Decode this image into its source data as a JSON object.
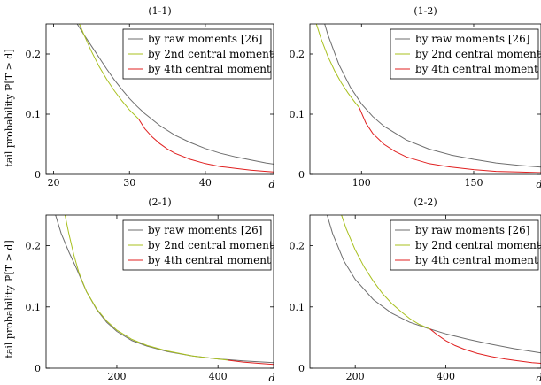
{
  "colors": {
    "raw": "#6e6e6e",
    "second": "#a8c01e",
    "fourth": "#e02020"
  },
  "ylabel": "tail probability ℙ[T ≥ d]",
  "chart_data": [
    {
      "type": "line",
      "title": "(1-1)",
      "xlabel": "d",
      "ylabel": "tail probability ℙ[T ≥ d]",
      "xlim": [
        19,
        49
      ],
      "ylim": [
        0,
        0.25
      ],
      "xticks": [
        20,
        30,
        40
      ],
      "yticks": [
        0,
        0.1,
        0.2
      ],
      "ytick_labels": [
        "0",
        "0.1",
        "0.2"
      ],
      "legend": "top-right",
      "series": [
        {
          "name": "by raw moments [26]",
          "color_key": "raw",
          "x": [
            22,
            23,
            24,
            25,
            26,
            27,
            28,
            29,
            30,
            31,
            32,
            34,
            36,
            38,
            40,
            42,
            44,
            46,
            48,
            49
          ],
          "y": [
            0.27,
            0.252,
            0.232,
            0.213,
            0.194,
            0.175,
            0.157,
            0.141,
            0.126,
            0.113,
            0.101,
            0.081,
            0.065,
            0.053,
            0.043,
            0.035,
            0.029,
            0.024,
            0.019,
            0.017
          ]
        },
        {
          "name": "by 2nd central moment",
          "color_key": "second",
          "x": [
            23,
            23.5,
            24,
            24.5,
            25,
            26,
            27,
            28,
            29,
            30,
            31.2
          ],
          "y": [
            0.26,
            0.247,
            0.232,
            0.218,
            0.204,
            0.179,
            0.158,
            0.139,
            0.122,
            0.107,
            0.092
          ]
        },
        {
          "name": "by 4th central moment",
          "color_key": "fourth",
          "x": [
            31.2,
            32,
            33,
            34,
            35,
            36,
            38,
            40,
            42,
            44,
            46,
            48,
            49
          ],
          "y": [
            0.092,
            0.076,
            0.062,
            0.051,
            0.042,
            0.035,
            0.025,
            0.018,
            0.013,
            0.01,
            0.007,
            0.005,
            0.004
          ]
        }
      ]
    },
    {
      "type": "line",
      "title": "(1-2)",
      "xlabel": "d",
      "ylabel": "",
      "xlim": [
        77,
        180
      ],
      "ylim": [
        0,
        0.25
      ],
      "xticks": [
        100,
        150
      ],
      "yticks": [
        0,
        0.1,
        0.2
      ],
      "ytick_labels": [
        "0",
        "0.1",
        "0.2"
      ],
      "legend": "top-right",
      "series": [
        {
          "name": "by raw moments [26]",
          "color_key": "raw",
          "x": [
            82,
            85,
            90,
            95,
            100,
            105,
            110,
            120,
            130,
            140,
            150,
            160,
            170,
            180
          ],
          "y": [
            0.27,
            0.232,
            0.182,
            0.145,
            0.117,
            0.096,
            0.08,
            0.057,
            0.042,
            0.032,
            0.025,
            0.019,
            0.015,
            0.012
          ]
        },
        {
          "name": "by 2nd central moment",
          "color_key": "second",
          "x": [
            79,
            82,
            85,
            88,
            91,
            94,
            97,
            99
          ],
          "y": [
            0.26,
            0.225,
            0.196,
            0.172,
            0.152,
            0.135,
            0.12,
            0.111
          ]
        },
        {
          "name": "by 4th central moment",
          "color_key": "fourth",
          "x": [
            99,
            102,
            105,
            110,
            115,
            120,
            130,
            140,
            150,
            160,
            170,
            180
          ],
          "y": [
            0.111,
            0.085,
            0.068,
            0.05,
            0.038,
            0.029,
            0.018,
            0.012,
            0.008,
            0.005,
            0.004,
            0.003
          ]
        }
      ]
    },
    {
      "type": "line",
      "title": "(2-1)",
      "xlabel": "d",
      "ylabel": "tail probability ℙ[T ≥ d]",
      "xlim": [
        60,
        510
      ],
      "ylim": [
        0,
        0.25
      ],
      "xticks": [
        200,
        400
      ],
      "yticks": [
        0,
        0.1,
        0.2
      ],
      "ytick_labels": [
        "0",
        "0.1",
        "0.2"
      ],
      "legend": "top-right",
      "series": [
        {
          "name": "by raw moments [26]",
          "color_key": "raw",
          "x": [
            75,
            90,
            105,
            120,
            140,
            160,
            180,
            200,
            230,
            260,
            300,
            350,
            400,
            450,
            510
          ],
          "y": [
            0.26,
            0.22,
            0.19,
            0.163,
            0.125,
            0.096,
            0.075,
            0.06,
            0.045,
            0.036,
            0.027,
            0.02,
            0.015,
            0.012,
            0.009
          ]
        },
        {
          "name": "by 2nd central moment",
          "color_key": "second",
          "x": [
            95,
            105,
            115,
            125,
            140,
            160,
            180,
            200,
            230,
            260,
            300,
            350,
            400,
            420
          ],
          "y": [
            0.26,
            0.22,
            0.185,
            0.156,
            0.125,
            0.097,
            0.077,
            0.062,
            0.047,
            0.037,
            0.028,
            0.02,
            0.015,
            0.013
          ]
        },
        {
          "name": "by 4th central moment",
          "color_key": "fourth",
          "x": [
            420,
            450,
            480,
            510
          ],
          "y": [
            0.013,
            0.01,
            0.008,
            0.006
          ]
        }
      ]
    },
    {
      "type": "line",
      "title": "(2-2)",
      "xlabel": "d",
      "ylabel": "",
      "xlim": [
        100,
        610
      ],
      "ylim": [
        0,
        0.25
      ],
      "xticks": [
        200,
        400
      ],
      "yticks": [
        0,
        0.1,
        0.2
      ],
      "ytick_labels": [
        "0",
        "0.1",
        "0.2"
      ],
      "legend": "top-right",
      "series": [
        {
          "name": "by raw moments [26]",
          "color_key": "raw",
          "x": [
            130,
            150,
            175,
            200,
            240,
            280,
            320,
            360,
            400,
            450,
            500,
            550,
            610
          ],
          "y": [
            0.27,
            0.22,
            0.175,
            0.145,
            0.112,
            0.09,
            0.075,
            0.065,
            0.056,
            0.047,
            0.039,
            0.032,
            0.025
          ]
        },
        {
          "name": "by 2nd central moment",
          "color_key": "second",
          "x": [
            165,
            180,
            200,
            220,
            240,
            260,
            280,
            300,
            320,
            340,
            365
          ],
          "y": [
            0.26,
            0.228,
            0.193,
            0.165,
            0.142,
            0.122,
            0.106,
            0.093,
            0.081,
            0.072,
            0.064
          ]
        },
        {
          "name": "by 4th central moment",
          "color_key": "fourth",
          "x": [
            365,
            380,
            400,
            420,
            440,
            470,
            500,
            530,
            560,
            590,
            610
          ],
          "y": [
            0.064,
            0.055,
            0.045,
            0.037,
            0.031,
            0.024,
            0.019,
            0.015,
            0.012,
            0.009,
            0.008
          ]
        }
      ]
    }
  ]
}
